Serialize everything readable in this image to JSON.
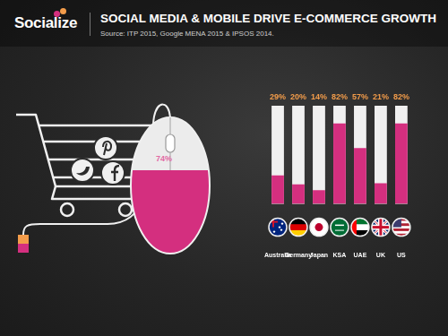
{
  "brand": "Socialize",
  "chart_data": {
    "type": "bar",
    "title": "SOCIAL MEDIA & MOBILE DRIVE E-COMMERCE GROWTH",
    "subtitle": "Source: ITP 2015, Google MENA 2015 & IPSOS 2014.",
    "annotations": [
      "74%"
    ],
    "categories": [
      "Australia",
      "Germany",
      "Japan",
      "KSA",
      "UAE",
      "UK",
      "US"
    ],
    "values": [
      29,
      20,
      14,
      82,
      57,
      21,
      82
    ],
    "value_labels": [
      "29%",
      "20%",
      "14%",
      "82%",
      "57%",
      "21%",
      "82%"
    ],
    "color": "#d42f7f",
    "ylim": [
      0,
      100
    ],
    "grid": false,
    "data_labels": true,
    "tick_labels": "x"
  }
}
